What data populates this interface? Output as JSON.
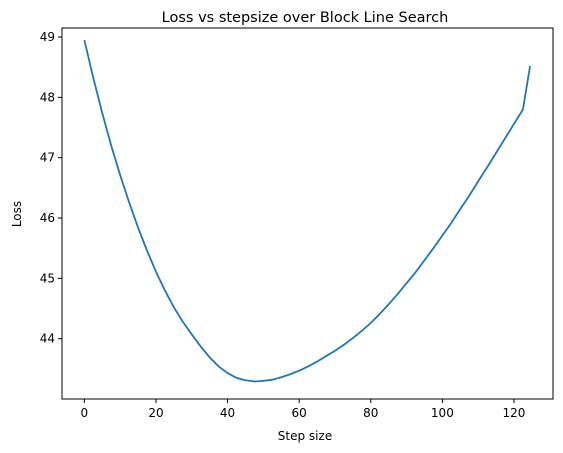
{
  "chart_data": {
    "type": "line",
    "title": "Loss vs stepsize over Block Line Search",
    "xlabel": "Step size",
    "ylabel": "Loss",
    "xlim": [
      -6.25,
      130.9
    ],
    "ylim": [
      43.0,
      49.15
    ],
    "xticks": [
      0,
      20,
      40,
      60,
      80,
      100,
      120
    ],
    "yticks": [
      44,
      45,
      46,
      47,
      48,
      49
    ],
    "grid": false,
    "series": [
      {
        "color": "#1f77b4",
        "x": [
          0,
          2.5,
          5,
          7.5,
          10,
          12.5,
          15,
          17.5,
          20,
          22.5,
          25,
          27.5,
          30,
          32.5,
          35,
          37.5,
          40,
          42.5,
          45,
          47.5,
          50,
          52.5,
          55,
          57.5,
          60,
          62.5,
          65,
          67.5,
          70,
          72.5,
          75,
          77.5,
          80,
          82.5,
          85,
          87.5,
          90,
          92.5,
          95,
          97.5,
          100,
          102.5,
          105,
          107.5,
          110,
          112.5,
          115,
          117.5,
          120,
          122.5,
          124.5
        ],
        "y": [
          48.95,
          48.32,
          47.74,
          47.2,
          46.71,
          46.26,
          45.84,
          45.46,
          45.11,
          44.8,
          44.52,
          44.28,
          44.07,
          43.87,
          43.69,
          43.54,
          43.43,
          43.35,
          43.31,
          43.29,
          43.3,
          43.32,
          43.36,
          43.41,
          43.47,
          43.54,
          43.62,
          43.71,
          43.8,
          43.9,
          44.01,
          44.13,
          44.26,
          44.41,
          44.57,
          44.74,
          44.92,
          45.1,
          45.3,
          45.5,
          45.71,
          45.92,
          46.15,
          46.37,
          46.61,
          46.84,
          47.08,
          47.32,
          47.56,
          47.8,
          48.52
        ]
      }
    ]
  }
}
